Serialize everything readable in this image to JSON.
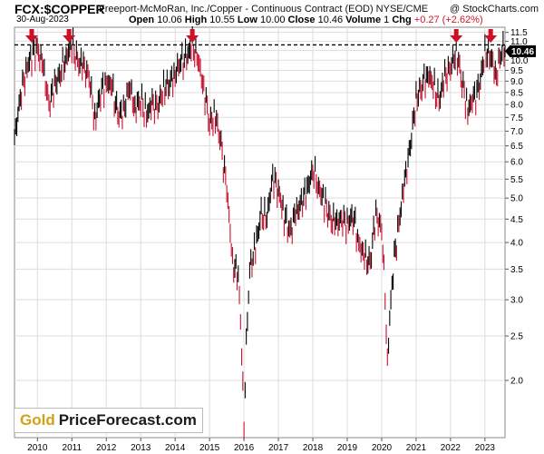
{
  "header": {
    "ticker": "FCX:$COPPER",
    "full_name": "Freeport-McMoRan, Inc./Copper - Continuous Contract (EOD) NYSE/CME",
    "watermark": "@ StockCharts.com",
    "date": "30-Aug-2023",
    "open_label": "Open",
    "open_value": "10.06",
    "high_label": "High",
    "high_value": "10.55",
    "low_label": "Low",
    "low_value": "10.00",
    "close_label": "Close",
    "close_value": "10.46",
    "volume_label": "Volume",
    "volume_value": "1",
    "chg_label": "Chg",
    "chg_value": "+0.27 (+2.62%)"
  },
  "logo": {
    "part1": "Gold",
    "part2": "PriceForecast.com"
  },
  "colors": {
    "up": "#000000",
    "down": "#c8102e",
    "arrow": "#cc1126",
    "last_price_bg": "#000000",
    "grid": "#dddddd"
  },
  "chart_data": {
    "type": "line",
    "title": "FCX:$COPPER",
    "y_scale": "log",
    "ylim": [
      1.5,
      11.8
    ],
    "x_range": [
      "2009-05",
      "2023-08"
    ],
    "x_ticks": [
      "2010",
      "2011",
      "2012",
      "2013",
      "2014",
      "2015",
      "2016",
      "2017",
      "2018",
      "2019",
      "2020",
      "2021",
      "2022",
      "2023"
    ],
    "y_ticks": [
      11.5,
      11.0,
      10.5,
      10.0,
      9.5,
      9.0,
      8.5,
      8.0,
      7.5,
      7.0,
      6.5,
      6.0,
      5.5,
      5.0,
      4.5,
      4.0,
      3.5,
      3.0,
      2.5,
      2.0
    ],
    "y_tick_labels": [
      "11.5",
      "11.0",
      "10.5",
      "10.0",
      "9.5",
      "9.0",
      "8.5",
      "8.0",
      "7.5",
      "7.0",
      "6.5",
      "6.0",
      "5.5",
      "5.0",
      "4.5",
      "4.0",
      "3.5",
      "3.0",
      "2.5",
      "2.0"
    ],
    "resistance_level": 10.8,
    "last_price": 10.46,
    "last_price_label": "10.46",
    "series": [
      {
        "x": [
          "2009-05",
          "2009-07",
          "2009-09",
          "2009-11",
          "2010-01",
          "2010-03",
          "2010-05",
          "2010-07",
          "2010-09",
          "2010-11",
          "2011-01",
          "2011-03",
          "2011-05",
          "2011-07",
          "2011-09",
          "2011-11",
          "2012-01",
          "2012-03",
          "2012-05",
          "2012-07",
          "2012-09",
          "2012-11",
          "2013-01",
          "2013-03",
          "2013-05",
          "2013-07",
          "2013-09",
          "2013-11",
          "2014-01",
          "2014-03",
          "2014-05",
          "2014-07",
          "2014-09",
          "2014-11",
          "2015-01",
          "2015-03",
          "2015-05",
          "2015-07",
          "2015-09",
          "2015-11",
          "2016-01",
          "2016-03",
          "2016-05",
          "2016-07",
          "2016-09",
          "2016-11",
          "2017-01",
          "2017-03",
          "2017-05",
          "2017-07",
          "2017-09",
          "2017-11",
          "2018-01",
          "2018-03",
          "2018-05",
          "2018-07",
          "2018-09",
          "2018-11",
          "2019-01",
          "2019-03",
          "2019-05",
          "2019-07",
          "2019-09",
          "2019-11",
          "2020-01",
          "2020-03",
          "2020-05",
          "2020-07",
          "2020-09",
          "2020-11",
          "2021-01",
          "2021-03",
          "2021-05",
          "2021-07",
          "2021-09",
          "2021-11",
          "2022-01",
          "2022-03",
          "2022-05",
          "2022-07",
          "2022-09",
          "2022-11",
          "2023-01",
          "2023-03",
          "2023-05",
          "2023-07",
          "2023-08"
        ],
        "y": [
          6.7,
          8.3,
          9.5,
          10.3,
          10.6,
          9.6,
          8.0,
          8.8,
          9.4,
          10.2,
          10.8,
          9.9,
          9.7,
          9.2,
          7.4,
          8.5,
          9.0,
          8.7,
          7.6,
          7.7,
          8.8,
          7.9,
          8.2,
          7.6,
          8.0,
          7.9,
          8.7,
          8.9,
          9.4,
          9.9,
          10.1,
          10.8,
          10.0,
          8.7,
          7.3,
          7.6,
          6.5,
          5.2,
          3.6,
          3.4,
          1.6,
          3.5,
          3.9,
          4.6,
          4.5,
          5.6,
          5.2,
          4.6,
          4.2,
          4.6,
          4.9,
          5.2,
          5.8,
          5.3,
          4.9,
          4.5,
          4.4,
          4.5,
          4.4,
          4.6,
          4.0,
          3.7,
          3.6,
          4.6,
          4.3,
          2.2,
          3.5,
          4.4,
          5.4,
          6.5,
          8.2,
          8.8,
          9.4,
          8.8,
          8.1,
          9.2,
          9.6,
          10.5,
          9.0,
          7.8,
          8.2,
          8.7,
          10.4,
          10.2,
          9.3,
          10.6,
          10.46
        ]
      }
    ]
  }
}
